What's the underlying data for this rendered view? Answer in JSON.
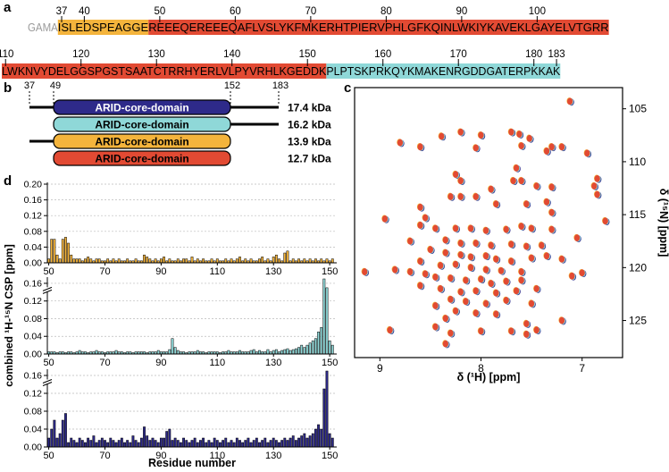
{
  "panels": {
    "a": "a",
    "b": "b",
    "c": "c",
    "d": "d"
  },
  "colors": {
    "orange": "#f4b43c",
    "red": "#e24a33",
    "cyan": "#8fd8d8",
    "navy": "#2e2a8a",
    "gray": "#9a9a9a"
  },
  "sequence": {
    "row1": {
      "segments": [
        {
          "text": "GAMA",
          "color": "none",
          "textColor": "#9a9a9a"
        },
        {
          "text": "ISLEDSPEAGGE",
          "color": "orange",
          "textColor": "#000"
        },
        {
          "text": "REEEQEREEEQAFLVSLYKFMKERHTPIERVPHLGFKQINLWKIYKAVEKLGAYELVTGRR",
          "color": "red",
          "textColor": "#000"
        }
      ],
      "ticks": [
        {
          "label": "37",
          "idx": 4
        },
        {
          "label": "40",
          "idx": 7
        },
        {
          "label": "50",
          "idx": 17
        },
        {
          "label": "60",
          "idx": 27
        },
        {
          "label": "70",
          "idx": 37
        },
        {
          "label": "80",
          "idx": 47
        },
        {
          "label": "90",
          "idx": 57
        },
        {
          "label": "100",
          "idx": 67
        }
      ]
    },
    "row2": {
      "segments": [
        {
          "text": "LWKNVYDELGGSPGSTSAATCTRRHYERLVLPYVRHLKGEDDK",
          "color": "red",
          "textColor": "#000"
        },
        {
          "text": "PLPTSKPRKQYKMAKENRGDDGATERPKKAK",
          "color": "cyan",
          "textColor": "#000"
        }
      ],
      "ticks": [
        {
          "label": "110",
          "idx": 0
        },
        {
          "label": "120",
          "idx": 10
        },
        {
          "label": "130",
          "idx": 20
        },
        {
          "label": "140",
          "idx": 30
        },
        {
          "label": "150",
          "idx": 40
        },
        {
          "label": "160",
          "idx": 50
        },
        {
          "label": "170",
          "idx": 60
        },
        {
          "label": "180",
          "idx": 70
        },
        {
          "label": "183",
          "idx": 73
        }
      ]
    }
  },
  "domains": {
    "ticks": [
      "37",
      "49",
      "152",
      "183"
    ],
    "rows": [
      {
        "label": "ARID-core-domain",
        "mass": "17.4 kDa",
        "color": "navy",
        "labelColor": "#ffffff",
        "leftTail": true,
        "rightTail": true
      },
      {
        "label": "ARID-core-domain",
        "mass": "16.2 kDa",
        "color": "cyan",
        "labelColor": "#000000",
        "leftTail": false,
        "rightTail": true
      },
      {
        "label": "ARID-core-domain",
        "mass": "13.9 kDa",
        "color": "orange",
        "labelColor": "#000000",
        "leftTail": true,
        "rightTail": false
      },
      {
        "label": "ARID-core-domain",
        "mass": "12.7 kDa",
        "color": "red",
        "labelColor": "#000000",
        "leftTail": false,
        "rightTail": false
      }
    ]
  },
  "chart_data": [
    {
      "type": "bar",
      "panel": "d-top",
      "color": "orange",
      "x_start": 50,
      "ylim": [
        0,
        0.2
      ],
      "yticks": [
        "0.00",
        "0.04",
        "0.08",
        "0.12",
        "0.16",
        "0.20"
      ],
      "xticks": [
        "50",
        "70",
        "90",
        "110",
        "130",
        "150"
      ],
      "values": [
        0.01,
        0.06,
        0.06,
        0.02,
        0.01,
        0.06,
        0.065,
        0.05,
        0.02,
        0.01,
        0.01,
        0.01,
        0.005,
        0.01,
        0.015,
        0.01,
        0.005,
        0.01,
        0.01,
        0.005,
        0.005,
        0.01,
        0.005,
        0.01,
        0.005,
        0.01,
        0.005,
        0.005,
        0.01,
        0.005,
        0.005,
        0.01,
        0.005,
        0.005,
        0.02,
        0.015,
        0.01,
        0.005,
        0.01,
        0.005,
        0.01,
        0.015,
        0.005,
        0.01,
        0.005,
        0.005,
        0.01,
        0.005,
        0.01,
        0.01,
        0.005,
        0.015,
        0.005,
        0.01,
        0.005,
        0.01,
        0.005,
        0.005,
        0.01,
        0.005,
        0.01,
        0.005,
        0.005,
        0.01,
        0.005,
        0.01,
        0.005,
        0.01,
        0.015,
        0.005,
        0.01,
        0.005,
        0.01,
        0.005,
        0.005,
        0.01,
        0.015,
        0.005,
        0.01,
        0.005,
        0.015,
        0.02,
        0.01,
        0.005,
        0.025,
        0.03,
        0.005,
        0.01,
        0.005,
        0.01,
        0.005,
        0.01,
        0.005,
        0.01,
        0.005,
        0.01,
        0.005,
        0.01,
        0.005,
        0.01,
        0.005,
        0.01
      ]
    },
    {
      "type": "bar",
      "panel": "d-middle",
      "color": "cyan",
      "x_start": 50,
      "ylim": [
        0,
        0.17
      ],
      "yticks": [
        "0.00",
        "0.04",
        "0.08",
        "0.12",
        "0.16"
      ],
      "xticks": [
        "50",
        "70",
        "90",
        "110",
        "130",
        "150"
      ],
      "values": [
        0.005,
        0.005,
        0.005,
        0.003,
        0.005,
        0.005,
        0.003,
        0.005,
        0.005,
        0.003,
        0.005,
        0.008,
        0.005,
        0.005,
        0.003,
        0.005,
        0.005,
        0.008,
        0.005,
        0.005,
        0.003,
        0.005,
        0.005,
        0.005,
        0.008,
        0.005,
        0.005,
        0.003,
        0.005,
        0.005,
        0.003,
        0.005,
        0.005,
        0.005,
        0.005,
        0.003,
        0.005,
        0.005,
        0.005,
        0.008,
        0.005,
        0.005,
        0.005,
        0.01,
        0.035,
        0.015,
        0.008,
        0.005,
        0.005,
        0.003,
        0.005,
        0.005,
        0.005,
        0.008,
        0.005,
        0.005,
        0.003,
        0.005,
        0.005,
        0.005,
        0.005,
        0.003,
        0.005,
        0.005,
        0.008,
        0.005,
        0.005,
        0.005,
        0.008,
        0.005,
        0.005,
        0.005,
        0.008,
        0.01,
        0.005,
        0.008,
        0.005,
        0.005,
        0.01,
        0.005,
        0.008,
        0.01,
        0.005,
        0.008,
        0.01,
        0.012,
        0.008,
        0.01,
        0.012,
        0.015,
        0.02,
        0.015,
        0.02,
        0.025,
        0.03,
        0.035,
        0.05,
        0.06,
        0.17,
        0.15,
        0.03,
        0.02
      ]
    },
    {
      "type": "bar",
      "panel": "d-bottom",
      "color": "navy",
      "x_start": 50,
      "ylim": [
        0,
        0.17
      ],
      "yticks": [
        "0.00",
        "0.04",
        "0.08",
        "0.12",
        "0.16"
      ],
      "xticks": [
        "50",
        "70",
        "90",
        "110",
        "130",
        "150"
      ],
      "values": [
        0.02,
        0.04,
        0.06,
        0.02,
        0.03,
        0.06,
        0.075,
        0.01,
        0.02,
        0.015,
        0.01,
        0.02,
        0.015,
        0.01,
        0.02,
        0.015,
        0.025,
        0.01,
        0.015,
        0.02,
        0.015,
        0.01,
        0.02,
        0.015,
        0.01,
        0.015,
        0.02,
        0.01,
        0.015,
        0.01,
        0.025,
        0.015,
        0.01,
        0.02,
        0.045,
        0.025,
        0.015,
        0.02,
        0.015,
        0.01,
        0.02,
        0.02,
        0.035,
        0.04,
        0.015,
        0.02,
        0.015,
        0.01,
        0.02,
        0.015,
        0.01,
        0.015,
        0.02,
        0.01,
        0.015,
        0.02,
        0.01,
        0.015,
        0.01,
        0.02,
        0.015,
        0.01,
        0.015,
        0.02,
        0.01,
        0.015,
        0.01,
        0.02,
        0.015,
        0.01,
        0.015,
        0.02,
        0.01,
        0.015,
        0.02,
        0.01,
        0.015,
        0.02,
        0.01,
        0.015,
        0.02,
        0.015,
        0.01,
        0.015,
        0.02,
        0.015,
        0.02,
        0.025,
        0.015,
        0.02,
        0.025,
        0.03,
        0.02,
        0.025,
        0.03,
        0.04,
        0.05,
        0.04,
        0.13,
        0.17,
        0.03,
        0.02
      ]
    },
    {
      "type": "scatter",
      "panel": "c",
      "xlabel": "δ (¹H) [ppm]",
      "ylabel": "δ (¹⁵N) [ppm]",
      "xlim": [
        9.25,
        6.6
      ],
      "ylim": [
        103,
        128.5
      ],
      "xticks": [
        "9",
        "8",
        "7"
      ],
      "yticks": [
        "105",
        "110",
        "115",
        "120",
        "125"
      ],
      "points": [
        [
          7.12,
          104.3
        ],
        [
          8.2,
          107.2
        ],
        [
          8.0,
          107.5
        ],
        [
          7.7,
          107.2
        ],
        [
          7.62,
          107.4
        ],
        [
          7.52,
          107.8
        ],
        [
          8.39,
          107.6
        ],
        [
          8.6,
          108.6
        ],
        [
          8.05,
          108.7
        ],
        [
          7.6,
          108.5
        ],
        [
          8.8,
          108.2
        ],
        [
          7.2,
          108.6
        ],
        [
          7.3,
          108.6
        ],
        [
          7.35,
          109.0
        ],
        [
          6.95,
          109.2
        ],
        [
          8.25,
          111.2
        ],
        [
          8.2,
          111.8
        ],
        [
          7.65,
          110.6
        ],
        [
          7.68,
          111.8
        ],
        [
          7.6,
          111.8
        ],
        [
          7.45,
          112.3
        ],
        [
          7.3,
          112.4
        ],
        [
          6.85,
          111.6
        ],
        [
          6.88,
          112.3
        ],
        [
          6.85,
          113.1
        ],
        [
          7.9,
          112.6
        ],
        [
          8.05,
          113.3
        ],
        [
          8.2,
          113.3
        ],
        [
          8.3,
          113.3
        ],
        [
          8.6,
          114.3
        ],
        [
          7.85,
          114.0
        ],
        [
          7.55,
          114.0
        ],
        [
          7.3,
          114.8
        ],
        [
          6.77,
          115.6
        ],
        [
          8.95,
          115.4
        ],
        [
          8.6,
          116.0
        ],
        [
          8.45,
          116.3
        ],
        [
          8.25,
          116.3
        ],
        [
          8.1,
          116.3
        ],
        [
          7.95,
          116.5
        ],
        [
          7.75,
          116.4
        ],
        [
          7.6,
          116.1
        ],
        [
          7.5,
          116.3
        ],
        [
          7.3,
          116.4
        ],
        [
          7.05,
          117.2
        ],
        [
          8.35,
          117.4
        ],
        [
          8.2,
          117.7
        ],
        [
          8.05,
          117.7
        ],
        [
          7.9,
          117.9
        ],
        [
          7.7,
          117.8
        ],
        [
          7.55,
          118.0
        ],
        [
          7.4,
          117.9
        ],
        [
          8.7,
          117.5
        ],
        [
          8.5,
          118.3
        ],
        [
          8.35,
          118.6
        ],
        [
          8.2,
          118.8
        ],
        [
          8.1,
          119.0
        ],
        [
          7.95,
          118.9
        ],
        [
          7.85,
          119.2
        ],
        [
          7.7,
          119.4
        ],
        [
          7.5,
          119.1
        ],
        [
          7.35,
          118.9
        ],
        [
          7.2,
          119.2
        ],
        [
          8.6,
          119.4
        ],
        [
          8.4,
          119.8
        ],
        [
          8.25,
          119.7
        ],
        [
          8.1,
          120.0
        ],
        [
          7.95,
          120.2
        ],
        [
          7.8,
          120.3
        ],
        [
          7.6,
          120.4
        ],
        [
          9.15,
          120.4
        ],
        [
          8.85,
          120.2
        ],
        [
          8.7,
          120.4
        ],
        [
          8.55,
          120.6
        ],
        [
          8.45,
          120.9
        ],
        [
          8.3,
          121.0
        ],
        [
          8.15,
          121.2
        ],
        [
          8.0,
          121.1
        ],
        [
          7.9,
          121.5
        ],
        [
          7.75,
          121.3
        ],
        [
          7.6,
          121.2
        ],
        [
          7.1,
          120.8
        ],
        [
          7.0,
          120.5
        ],
        [
          8.6,
          121.7
        ],
        [
          8.4,
          122.0
        ],
        [
          8.2,
          122.3
        ],
        [
          8.05,
          122.2
        ],
        [
          7.85,
          122.4
        ],
        [
          7.65,
          122.2
        ],
        [
          7.45,
          122.0
        ],
        [
          8.3,
          123.0
        ],
        [
          8.15,
          123.2
        ],
        [
          7.95,
          123.4
        ],
        [
          7.75,
          123.1
        ],
        [
          7.5,
          123.4
        ],
        [
          8.45,
          123.6
        ],
        [
          8.25,
          124.1
        ],
        [
          8.05,
          124.3
        ],
        [
          7.85,
          124.4
        ],
        [
          8.35,
          124.8
        ],
        [
          7.55,
          125.3
        ],
        [
          7.2,
          125.0
        ],
        [
          8.9,
          125.9
        ],
        [
          8.45,
          125.6
        ],
        [
          8.3,
          126.2
        ],
        [
          8.0,
          126.0
        ],
        [
          7.7,
          126.0
        ],
        [
          7.55,
          126.3
        ],
        [
          8.35,
          127.2
        ],
        [
          7.45,
          125.9
        ],
        [
          8.55,
          115.3
        ],
        [
          7.35,
          113.8
        ]
      ]
    }
  ],
  "d_axis": {
    "ylabel": "combined ¹H-¹⁵N CSP [ppm]",
    "xlabel": "Residue number"
  }
}
